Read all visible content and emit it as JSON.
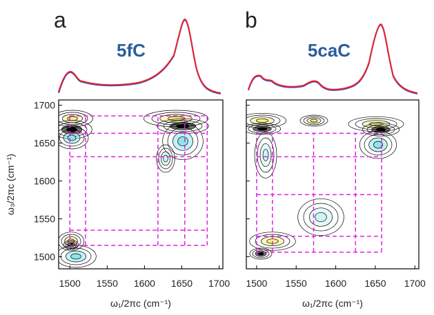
{
  "chart_data": [
    {
      "type": "contour",
      "panel": "a",
      "title": "5fC",
      "xlabel": "ω₁/2πc (cm⁻¹)",
      "ylabel": "ω₃/2πc (cm⁻¹)",
      "xlim": [
        1485,
        1705
      ],
      "ylim": [
        1484,
        1707
      ],
      "xticks": [
        1500,
        1550,
        1600,
        1650,
        1700
      ],
      "yticks": [
        1500,
        1550,
        1600,
        1650,
        1700
      ],
      "show_ytick_labels": true,
      "guide_x": [
        1500,
        1521,
        1618,
        1654,
        1684
      ],
      "guide_y": [
        1686,
        1663,
        1632,
        1535,
        1515
      ],
      "guide_color": "#e020e0"
    },
    {
      "type": "contour",
      "panel": "b",
      "title": "5caC",
      "xlabel": "ω₁/2πc (cm⁻¹)",
      "xlim": [
        1487,
        1705
      ],
      "ylim": [
        1484,
        1707
      ],
      "xticks": [
        1500,
        1550,
        1600,
        1650,
        1700
      ],
      "yticks": [
        1500,
        1550,
        1600,
        1650,
        1700
      ],
      "show_ytick_labels": false,
      "guide_x": [
        1500,
        1520,
        1572,
        1625,
        1658
      ],
      "guide_y": [
        1663,
        1632,
        1582,
        1527,
        1506
      ],
      "guide_color": "#e020e0"
    }
  ]
}
